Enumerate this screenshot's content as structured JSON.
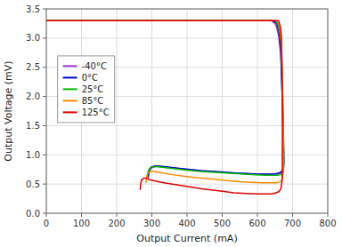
{
  "chart_data": {
    "type": "line",
    "xlabel": "Output Current (mA)",
    "ylabel": "Output Voltage (mV)",
    "xlim": [
      0,
      800
    ],
    "ylim": [
      0,
      3.5
    ],
    "xticks": [
      0,
      100,
      200,
      300,
      400,
      500,
      600,
      700,
      800
    ],
    "yticks": [
      {
        "value": 0,
        "label": "0.0"
      },
      0.5,
      {
        "value": 1.0,
        "label": "1.0"
      },
      1.5,
      {
        "value": 2.0,
        "label": "2.0"
      },
      2.5,
      {
        "value": 3.0,
        "label": "3.0"
      },
      3.5
    ],
    "grid": true,
    "legend": "upper left",
    "series": [
      {
        "name": "-40°C",
        "color": "#9933cc",
        "x": [
          0,
          300,
          640,
          650,
          655,
          660,
          665,
          668,
          670,
          672,
          674,
          675,
          675,
          673,
          670,
          665,
          655,
          640,
          610,
          580,
          550,
          500,
          450,
          400,
          350,
          320,
          310,
          305,
          300,
          295,
          292,
          290
        ],
        "values": [
          3.3,
          3.3,
          3.3,
          3.25,
          3.18,
          3.05,
          2.8,
          2.5,
          2.1,
          1.7,
          1.3,
          1.0,
          0.85,
          0.78,
          0.73,
          0.7,
          0.68,
          0.67,
          0.67,
          0.67,
          0.68,
          0.7,
          0.72,
          0.75,
          0.78,
          0.8,
          0.8,
          0.79,
          0.78,
          0.75,
          0.7,
          0.6
        ]
      },
      {
        "name": "0°C",
        "color": "#0000cc",
        "x": [
          0,
          310,
          645,
          655,
          660,
          664,
          667,
          669,
          671,
          673,
          674,
          675,
          674,
          672,
          668,
          660,
          648,
          630,
          600,
          570,
          540,
          490,
          440,
          390,
          345,
          318,
          308,
          303,
          298,
          294,
          291,
          289
        ],
        "values": [
          3.3,
          3.3,
          3.3,
          3.25,
          3.15,
          3.0,
          2.7,
          2.3,
          1.9,
          1.5,
          1.15,
          0.88,
          0.78,
          0.73,
          0.7,
          0.68,
          0.67,
          0.67,
          0.67,
          0.68,
          0.69,
          0.71,
          0.73,
          0.76,
          0.79,
          0.81,
          0.81,
          0.8,
          0.79,
          0.76,
          0.72,
          0.62
        ]
      },
      {
        "name": "25°C",
        "color": "#00bb00",
        "x": [
          0,
          315,
          650,
          658,
          663,
          667,
          669,
          671,
          673,
          674,
          675,
          675,
          674,
          671,
          666,
          657,
          644,
          625,
          595,
          564,
          533,
          483,
          432,
          382,
          340,
          315,
          306,
          301,
          296,
          292,
          289,
          287
        ],
        "values": [
          3.3,
          3.3,
          3.3,
          3.24,
          3.12,
          2.95,
          2.62,
          2.2,
          1.82,
          1.42,
          1.08,
          0.82,
          0.72,
          0.68,
          0.66,
          0.65,
          0.65,
          0.65,
          0.66,
          0.67,
          0.68,
          0.7,
          0.72,
          0.75,
          0.78,
          0.8,
          0.8,
          0.79,
          0.78,
          0.75,
          0.71,
          0.61
        ]
      },
      {
        "name": "85°C",
        "color": "#ff8800",
        "x": [
          0,
          325,
          655,
          662,
          666,
          668,
          670,
          671,
          672,
          673,
          673,
          673,
          671,
          667,
          660,
          650,
          635,
          614,
          582,
          549,
          515,
          463,
          410,
          358,
          320,
          305,
          298,
          294,
          290,
          287,
          285,
          283
        ],
        "values": [
          3.3,
          3.3,
          3.3,
          3.22,
          3.08,
          2.88,
          2.5,
          2.05,
          1.65,
          1.25,
          0.92,
          0.68,
          0.58,
          0.55,
          0.53,
          0.52,
          0.52,
          0.52,
          0.53,
          0.54,
          0.56,
          0.59,
          0.62,
          0.66,
          0.7,
          0.72,
          0.72,
          0.71,
          0.7,
          0.67,
          0.62,
          0.52
        ]
      },
      {
        "name": "125°C",
        "color": "#dd0000",
        "x": [
          0,
          335,
          660,
          665,
          668,
          669,
          670,
          671,
          671,
          671,
          671,
          670,
          667,
          661,
          653,
          641,
          624,
          601,
          568,
          533,
          496,
          442,
          387,
          334,
          296,
          284,
          278,
          275,
          272,
          270,
          268,
          267
        ],
        "values": [
          3.3,
          3.3,
          3.3,
          3.2,
          3.05,
          2.82,
          2.45,
          1.98,
          1.55,
          1.15,
          0.82,
          0.55,
          0.42,
          0.37,
          0.35,
          0.33,
          0.33,
          0.33,
          0.34,
          0.35,
          0.38,
          0.42,
          0.47,
          0.52,
          0.57,
          0.6,
          0.6,
          0.59,
          0.58,
          0.55,
          0.5,
          0.4
        ]
      }
    ]
  }
}
